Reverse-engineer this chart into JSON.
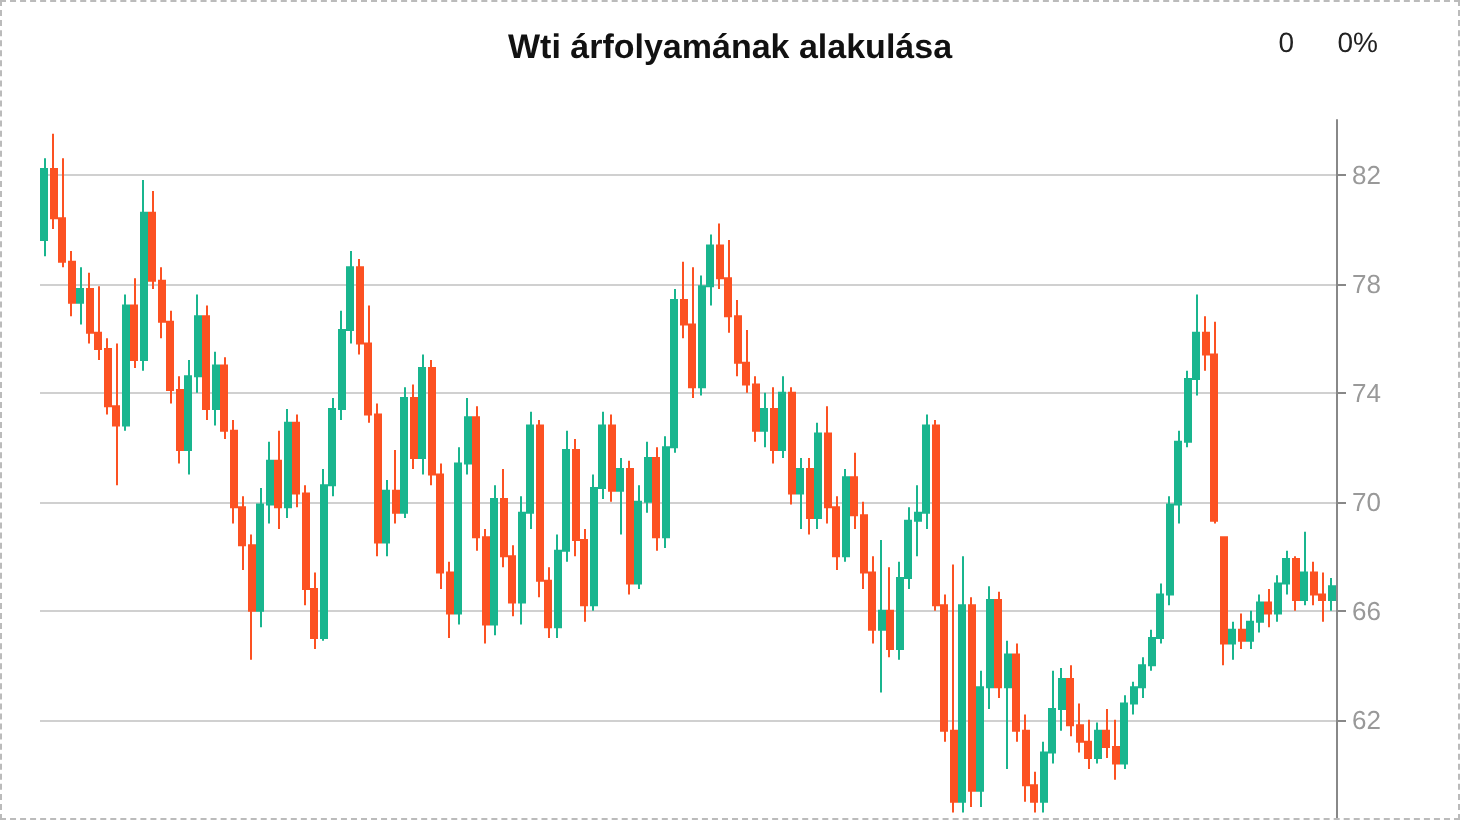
{
  "chart_data": {
    "type": "candlestick",
    "title": "Wti árfolyamának alakulása",
    "annotations": [
      "0",
      "0%"
    ],
    "categories": [
      null,
      null,
      null,
      null,
      null,
      null,
      null,
      null,
      null,
      null,
      null,
      null,
      null,
      null,
      null,
      null,
      null,
      null,
      null,
      null,
      null,
      null,
      null,
      null,
      null,
      null,
      null,
      null,
      null,
      null,
      null,
      null,
      null,
      null,
      null,
      null,
      null,
      null,
      null,
      null,
      null,
      null,
      null,
      null,
      null,
      null,
      null,
      null,
      null,
      null,
      null,
      null,
      null,
      null,
      null,
      null,
      null,
      null,
      null,
      null,
      null,
      null,
      null,
      null,
      null,
      null,
      null,
      null,
      null,
      null,
      null,
      null,
      null,
      null,
      null,
      null,
      null,
      null,
      null,
      null,
      null,
      null,
      null,
      null,
      null,
      null,
      null,
      null,
      null,
      null,
      null,
      null,
      null,
      null,
      null,
      null,
      null,
      null,
      null,
      null,
      null,
      null,
      null,
      null,
      null,
      null,
      null,
      null,
      null,
      null,
      null,
      null,
      null,
      null,
      null,
      null,
      null,
      null,
      null,
      null,
      null,
      null,
      null,
      null,
      null,
      null,
      null,
      null,
      null,
      null,
      null,
      null,
      null,
      null,
      null,
      null,
      null,
      null,
      null,
      null,
      null,
      null,
      null,
      null
    ],
    "ohlc": [
      [
        79.6,
        82.6,
        79.0,
        82.2
      ],
      [
        82.2,
        83.5,
        80.0,
        80.4
      ],
      [
        80.4,
        82.6,
        78.6,
        78.8
      ],
      [
        78.8,
        79.2,
        76.8,
        77.3
      ],
      [
        77.3,
        78.6,
        76.5,
        77.8
      ],
      [
        77.8,
        78.4,
        75.8,
        76.2
      ],
      [
        76.2,
        77.9,
        75.2,
        75.6
      ],
      [
        75.6,
        76.0,
        73.2,
        73.5
      ],
      [
        73.5,
        75.8,
        70.6,
        72.8
      ],
      [
        72.8,
        77.6,
        72.6,
        77.2
      ],
      [
        77.2,
        78.2,
        74.9,
        75.2
      ],
      [
        75.2,
        81.8,
        74.8,
        80.6
      ],
      [
        80.6,
        81.4,
        77.8,
        78.1
      ],
      [
        78.1,
        78.6,
        76.0,
        76.6
      ],
      [
        76.6,
        77.0,
        73.6,
        74.1
      ],
      [
        74.1,
        74.6,
        71.4,
        71.9
      ],
      [
        71.9,
        75.2,
        71.0,
        74.6
      ],
      [
        74.6,
        77.6,
        74.0,
        76.8
      ],
      [
        76.8,
        77.2,
        73.0,
        73.4
      ],
      [
        73.4,
        75.5,
        72.8,
        75.0
      ],
      [
        75.0,
        75.3,
        72.3,
        72.6
      ],
      [
        72.6,
        73.0,
        69.2,
        69.8
      ],
      [
        69.8,
        70.2,
        67.5,
        68.4
      ],
      [
        68.4,
        68.8,
        64.2,
        66.0
      ],
      [
        66.0,
        70.5,
        65.4,
        69.9
      ],
      [
        69.9,
        72.2,
        69.2,
        71.5
      ],
      [
        71.5,
        72.6,
        69.0,
        69.8
      ],
      [
        69.8,
        73.4,
        69.4,
        72.9
      ],
      [
        72.9,
        73.2,
        69.8,
        70.3
      ],
      [
        70.3,
        70.6,
        66.2,
        66.8
      ],
      [
        66.8,
        67.4,
        64.6,
        65.0
      ],
      [
        65.0,
        71.2,
        64.9,
        70.6
      ],
      [
        70.6,
        73.8,
        70.2,
        73.4
      ],
      [
        73.4,
        77.0,
        73.0,
        76.3
      ],
      [
        76.3,
        79.2,
        75.8,
        78.6
      ],
      [
        78.6,
        78.9,
        75.4,
        75.8
      ],
      [
        75.8,
        77.2,
        72.9,
        73.2
      ],
      [
        73.2,
        73.6,
        68.0,
        68.5
      ],
      [
        68.5,
        70.8,
        68.0,
        70.4
      ],
      [
        70.4,
        71.9,
        69.2,
        69.6
      ],
      [
        69.6,
        74.2,
        69.4,
        73.8
      ],
      [
        73.8,
        74.3,
        71.2,
        71.6
      ],
      [
        71.6,
        75.4,
        71.0,
        74.9
      ],
      [
        74.9,
        75.2,
        70.6,
        71.0
      ],
      [
        71.0,
        71.4,
        66.8,
        67.4
      ],
      [
        67.4,
        67.8,
        65.0,
        65.9
      ],
      [
        65.9,
        72.0,
        65.5,
        71.4
      ],
      [
        71.4,
        73.8,
        71.0,
        73.1
      ],
      [
        73.1,
        73.5,
        68.2,
        68.7
      ],
      [
        68.7,
        69.0,
        64.8,
        65.5
      ],
      [
        65.5,
        70.6,
        65.1,
        70.1
      ],
      [
        70.1,
        71.2,
        67.6,
        68.0
      ],
      [
        68.0,
        68.4,
        65.8,
        66.3
      ],
      [
        66.3,
        70.2,
        65.5,
        69.6
      ],
      [
        69.6,
        73.3,
        69.0,
        72.8
      ],
      [
        72.8,
        73.0,
        66.5,
        67.1
      ],
      [
        67.1,
        67.6,
        65.0,
        65.4
      ],
      [
        65.4,
        68.8,
        65.0,
        68.2
      ],
      [
        68.2,
        72.6,
        67.8,
        71.9
      ],
      [
        71.9,
        72.3,
        68.0,
        68.6
      ],
      [
        68.6,
        69.0,
        65.6,
        66.2
      ],
      [
        66.2,
        71.0,
        66.0,
        70.5
      ],
      [
        70.5,
        73.3,
        70.1,
        72.8
      ],
      [
        72.8,
        73.2,
        70.0,
        70.4
      ],
      [
        70.4,
        71.6,
        68.8,
        71.2
      ],
      [
        71.2,
        71.5,
        66.6,
        67.0
      ],
      [
        67.0,
        70.6,
        66.8,
        70.0
      ],
      [
        70.0,
        72.2,
        69.6,
        71.6
      ],
      [
        71.6,
        72.0,
        68.2,
        68.7
      ],
      [
        68.7,
        72.4,
        68.3,
        72.0
      ],
      [
        72.0,
        77.8,
        71.8,
        77.4
      ],
      [
        77.4,
        78.8,
        76.0,
        76.5
      ],
      [
        76.5,
        78.6,
        73.8,
        74.2
      ],
      [
        74.2,
        78.3,
        73.9,
        77.9
      ],
      [
        77.9,
        79.8,
        77.2,
        79.4
      ],
      [
        79.4,
        80.2,
        77.8,
        78.2
      ],
      [
        78.2,
        79.6,
        76.2,
        76.8
      ],
      [
        76.8,
        77.4,
        74.6,
        75.1
      ],
      [
        75.1,
        76.3,
        74.0,
        74.3
      ],
      [
        74.3,
        74.6,
        72.2,
        72.6
      ],
      [
        72.6,
        74.0,
        72.0,
        73.4
      ],
      [
        73.4,
        74.2,
        71.4,
        71.9
      ],
      [
        71.9,
        74.6,
        71.6,
        74.0
      ],
      [
        74.0,
        74.2,
        69.9,
        70.3
      ],
      [
        70.3,
        71.6,
        69.0,
        71.2
      ],
      [
        71.2,
        71.6,
        68.8,
        69.4
      ],
      [
        69.4,
        72.9,
        69.0,
        72.5
      ],
      [
        72.5,
        73.5,
        69.2,
        69.8
      ],
      [
        69.8,
        70.2,
        67.5,
        68.0
      ],
      [
        68.0,
        71.2,
        67.8,
        70.9
      ],
      [
        70.9,
        71.8,
        69.0,
        69.5
      ],
      [
        69.5,
        70.0,
        66.8,
        67.4
      ],
      [
        67.4,
        68.0,
        64.8,
        65.3
      ],
      [
        65.3,
        68.6,
        63.0,
        66.0
      ],
      [
        66.0,
        67.6,
        64.3,
        64.6
      ],
      [
        64.6,
        67.8,
        64.2,
        67.2
      ],
      [
        67.2,
        69.8,
        66.8,
        69.3
      ],
      [
        69.3,
        70.6,
        68.0,
        69.6
      ],
      [
        69.6,
        73.2,
        69.0,
        72.8
      ],
      [
        72.8,
        73.0,
        66.0,
        66.2
      ],
      [
        66.2,
        66.6,
        61.2,
        61.6
      ],
      [
        61.6,
        67.7,
        58.6,
        59.0
      ],
      [
        59.0,
        68.0,
        58.6,
        66.2
      ],
      [
        66.2,
        66.5,
        58.8,
        59.4
      ],
      [
        59.4,
        63.8,
        58.8,
        63.2
      ],
      [
        63.2,
        66.9,
        62.4,
        66.4
      ],
      [
        66.4,
        66.7,
        62.8,
        63.2
      ],
      [
        63.2,
        64.9,
        60.2,
        64.4
      ],
      [
        64.4,
        64.8,
        61.2,
        61.6
      ],
      [
        61.6,
        62.2,
        59.0,
        59.6
      ],
      [
        59.6,
        60.1,
        58.6,
        59.0
      ],
      [
        59.0,
        61.2,
        58.6,
        60.8
      ],
      [
        60.8,
        63.8,
        60.4,
        62.4
      ],
      [
        62.4,
        63.9,
        61.6,
        63.5
      ],
      [
        63.5,
        64.0,
        61.4,
        61.8
      ],
      [
        61.8,
        62.6,
        60.8,
        61.2
      ],
      [
        61.2,
        62.0,
        60.2,
        60.6
      ],
      [
        60.6,
        61.9,
        60.4,
        61.6
      ],
      [
        61.6,
        62.4,
        60.6,
        61.0
      ],
      [
        61.0,
        62.0,
        59.8,
        60.4
      ],
      [
        60.4,
        62.9,
        60.2,
        62.6
      ],
      [
        62.6,
        63.4,
        62.2,
        63.2
      ],
      [
        63.2,
        64.3,
        62.8,
        64.0
      ],
      [
        64.0,
        65.3,
        63.8,
        65.0
      ],
      [
        65.0,
        67.0,
        64.8,
        66.6
      ],
      [
        66.6,
        70.2,
        66.2,
        69.9
      ],
      [
        69.9,
        72.6,
        69.2,
        72.2
      ],
      [
        72.2,
        74.8,
        72.0,
        74.5
      ],
      [
        74.5,
        77.6,
        73.9,
        76.2
      ],
      [
        76.2,
        76.8,
        74.8,
        75.4
      ],
      [
        75.4,
        76.6,
        69.2,
        69.3
      ],
      [
        68.7,
        68.7,
        64.0,
        64.8
      ],
      [
        64.8,
        65.6,
        64.2,
        65.3
      ],
      [
        65.3,
        65.9,
        64.6,
        64.9
      ],
      [
        64.9,
        66.0,
        64.6,
        65.6
      ],
      [
        65.6,
        66.6,
        65.2,
        66.3
      ],
      [
        66.3,
        66.8,
        65.4,
        65.9
      ],
      [
        65.9,
        67.3,
        65.6,
        67.0
      ],
      [
        67.0,
        68.2,
        66.6,
        67.9
      ],
      [
        67.9,
        68.0,
        66.0,
        66.4
      ],
      [
        66.4,
        68.9,
        66.2,
        67.4
      ],
      [
        67.4,
        67.8,
        66.2,
        66.6
      ],
      [
        66.6,
        67.4,
        65.6,
        66.4
      ],
      [
        66.4,
        67.2,
        66.0,
        66.9
      ]
    ],
    "colors": [
      "#19b58e",
      "#fc5122",
      "#fc5122",
      "#fc5122",
      "#19b58e",
      "#fc5122",
      "#fc5122",
      "#fc5122",
      "#fc5122",
      "#19b58e",
      "#fc5122",
      "#19b58e",
      "#fc5122",
      "#fc5122",
      "#fc5122",
      "#fc5122",
      "#19b58e",
      "#19b58e",
      "#fc5122",
      "#19b58e",
      "#fc5122",
      "#fc5122",
      "#fc5122",
      "#fc5122",
      "#19b58e",
      "#19b58e",
      "#fc5122",
      "#19b58e",
      "#fc5122",
      "#fc5122",
      "#fc5122",
      "#19b58e",
      "#19b58e",
      "#19b58e",
      "#19b58e",
      "#fc5122",
      "#fc5122",
      "#fc5122",
      "#19b58e",
      "#fc5122",
      "#19b58e",
      "#fc5122",
      "#19b58e",
      "#fc5122",
      "#fc5122",
      "#fc5122",
      "#19b58e",
      "#19b58e",
      "#fc5122",
      "#fc5122",
      "#19b58e",
      "#fc5122",
      "#fc5122",
      "#19b58e",
      "#19b58e",
      "#fc5122",
      "#fc5122",
      "#19b58e",
      "#19b58e",
      "#fc5122",
      "#fc5122",
      "#19b58e",
      "#19b58e",
      "#fc5122",
      "#19b58e",
      "#fc5122",
      "#19b58e",
      "#19b58e",
      "#fc5122",
      "#19b58e",
      "#19b58e",
      "#fc5122",
      "#fc5122",
      "#19b58e",
      "#19b58e",
      "#fc5122",
      "#fc5122",
      "#fc5122",
      "#fc5122",
      "#fc5122",
      "#19b58e",
      "#fc5122",
      "#19b58e",
      "#fc5122",
      "#19b58e",
      "#fc5122",
      "#19b58e",
      "#fc5122",
      "#fc5122",
      "#19b58e",
      "#fc5122",
      "#fc5122",
      "#fc5122",
      "#19b58e",
      "#fc5122",
      "#19b58e",
      "#19b58e",
      "#19b58e",
      "#19b58e",
      "#fc5122",
      "#fc5122",
      "#fc5122",
      "#19b58e",
      "#fc5122",
      "#19b58e",
      "#19b58e",
      "#fc5122",
      "#19b58e",
      "#fc5122",
      "#fc5122",
      "#fc5122",
      "#19b58e",
      "#19b58e",
      "#19b58e",
      "#fc5122",
      "#fc5122",
      "#fc5122",
      "#19b58e",
      "#fc5122",
      "#fc5122",
      "#19b58e",
      "#19b58e",
      "#19b58e",
      "#19b58e",
      "#19b58e",
      "#19b58e",
      "#19b58e",
      "#19b58e",
      "#19b58e",
      "#fc5122",
      "#fc5122",
      "#fc5122",
      "#19b58e",
      "#fc5122",
      "#19b58e",
      "#19b58e",
      "#fc5122",
      "#19b58e",
      "#19b58e",
      "#fc5122",
      "#19b58e",
      "#fc5122",
      "#fc5122",
      "#19b58e"
    ],
    "ylim": [
      58.4,
      84
    ],
    "yticks": [
      62,
      66,
      70,
      74,
      78,
      82
    ],
    "grid": "y"
  }
}
